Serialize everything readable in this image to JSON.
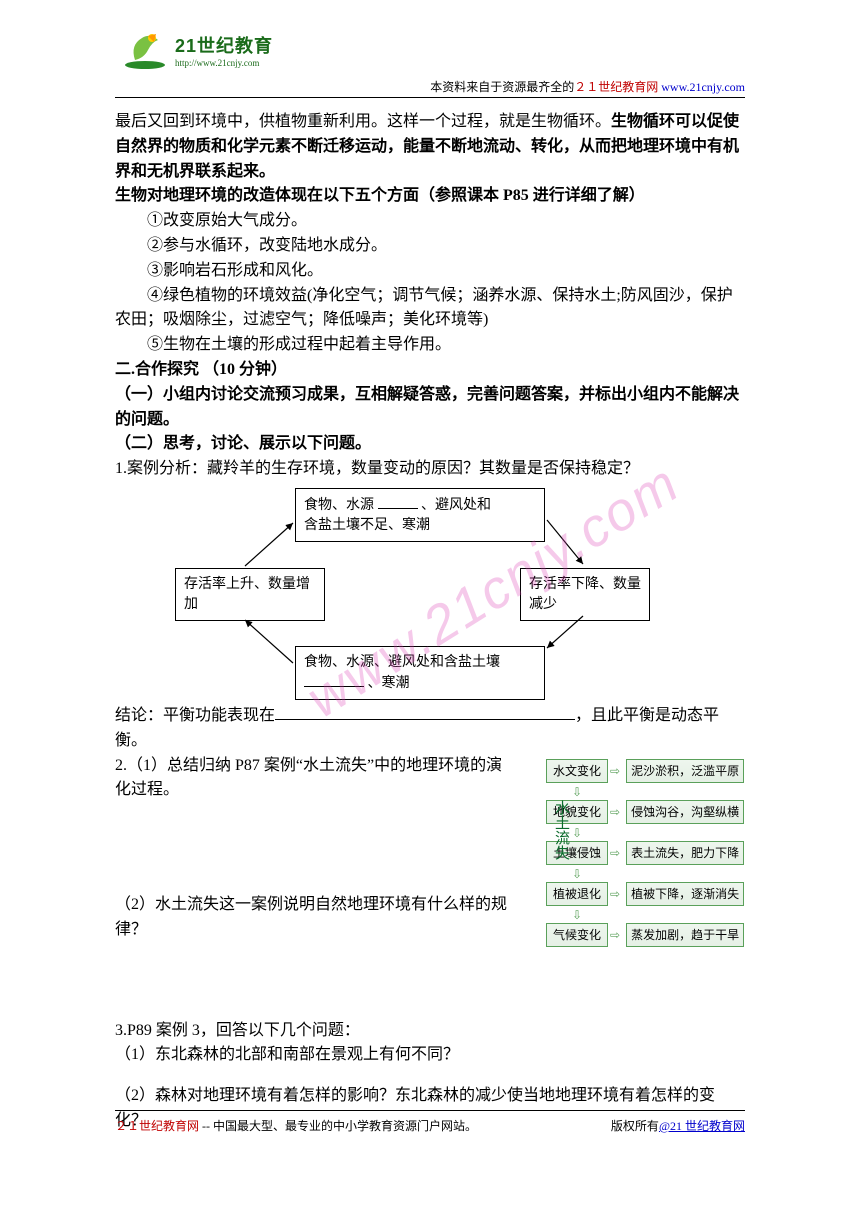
{
  "header": {
    "logo_cn": "21世纪教育",
    "logo_url": "http://www.21cnjy.com",
    "line_black": "本资料来自于资源最齐全的",
    "line_red": "２１世纪教育网",
    "line_link": "www.21cnjy.com"
  },
  "body": {
    "p1": "最后又回到环境中，供植物重新利用。这样一个过程，就是生物循环。",
    "p1_bold": "生物循环可以促使自然界的物质和化学元素不断迁移运动，能量不断地流动、转化，从而把地理环境中有机界和无机界联系起来。",
    "p2_bold": "生物对地理环境的改造体现在以下五个方面（参照课本 P85 进行详细了解）",
    "li1": "①改变原始大气成分。",
    "li2": "②参与水循环，改变陆地水成分。",
    "li3": "③影响岩石形成和风化。",
    "li4": "④绿色植物的环境效益(净化空气；调节气候；涵养水源、保持水土;防风固沙，保护农田；吸烟除尘，过滤空气；降低噪声；美化环境等)",
    "li5": "⑤生物在土壤的形成过程中起着主导作用。",
    "sec2_title": "二.合作探究  （10 分钟）",
    "sec2_1": "（一）小组内讨论交流预习成果，互相解疑答惑，完善问题答案，并标出小组内不能解决的问题。",
    "sec2_2": "（二）思考，讨论、展示以下问题。",
    "q1": "1.案例分析：藏羚羊的生存环境，数量变动的原因？其数量是否保持稳定？",
    "conclusion_pre": "结论：平衡功能表现在",
    "conclusion_post": "，且此平衡是动态平衡。",
    "q2_1": "2.（1）总结归纳 P87 案例“水土流失”中的地理环境的演化过程。",
    "q2_2": "（2）水土流失这一案例说明自然地理环境有什么样的规律？",
    "q3": "3.P89 案例 3，回答以下几个问题：",
    "q3_1": "（1）东北森林的北部和南部在景观上有何不同？",
    "q3_2": "（2）森林对地理环境有着怎样的影响？东北森林的减少使当地地理环境有着怎样的变化？"
  },
  "diagram": {
    "top_a": "食物、水源",
    "top_b": "、避风处和",
    "top_c": "含盐土壤不足、寒潮",
    "left": "存活率上升、数量增加",
    "right": "存活率下降、数量减少",
    "bottom_a": "食物、水源、避风处和含盐土壤",
    "bottom_b": "、寒潮"
  },
  "figure": {
    "vlabel": "水土流失",
    "left_items": [
      "水文变化",
      "地貌变化",
      "土壤侵蚀",
      "植被退化",
      "气候变化"
    ],
    "right_items": [
      "泥沙淤积，泛滥平原",
      "侵蚀沟谷，沟壑纵横",
      "表土流失，肥力下降",
      "植被下降，逐渐消失",
      "蒸发加剧，趋于干旱"
    ],
    "colors": {
      "border": "#5aa05a",
      "text": "#0b6b2c"
    }
  },
  "watermark": "www.21cnjy.com",
  "footer": {
    "left_red": "２１世纪教育网",
    "left_rest": " -- 中国最大型、最专业的中小学教育资源门户网站。",
    "right_pre": "版权所有",
    "right_link": "@21 世纪教育网"
  }
}
